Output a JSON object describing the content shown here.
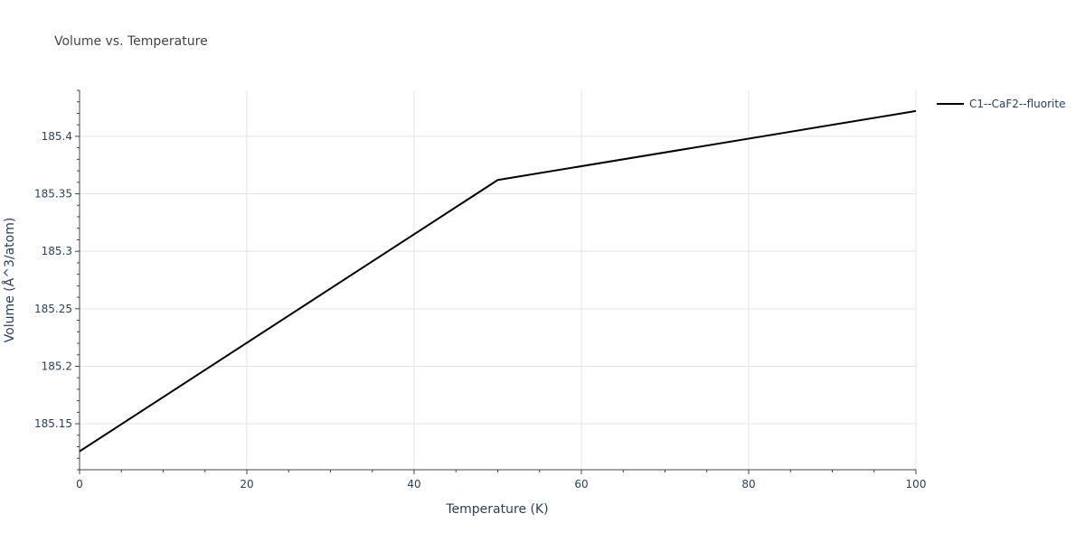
{
  "chart_data": {
    "type": "line",
    "title": "Volume vs. Temperature",
    "xlabel": "Temperature (K)",
    "ylabel": "Volume (Å^3/atom)",
    "xlim": [
      0,
      100
    ],
    "ylim": [
      185.11,
      185.44
    ],
    "x_ticks": [
      0,
      20,
      40,
      60,
      80,
      100
    ],
    "x_tick_labels": [
      "0",
      "20",
      "40",
      "60",
      "80",
      "100"
    ],
    "y_ticks": [
      185.15,
      185.2,
      185.25,
      185.3,
      185.35,
      185.4
    ],
    "y_tick_labels": [
      "185.15",
      "185.2",
      "185.25",
      "185.3",
      "185.35",
      "185.4"
    ],
    "grid": true,
    "legend_position": "top-right, outside plot",
    "series": [
      {
        "name": "C1--CaF2--fluorite",
        "color": "#000000",
        "x": [
          0,
          50,
          100
        ],
        "y": [
          185.126,
          185.362,
          185.422
        ]
      }
    ]
  }
}
